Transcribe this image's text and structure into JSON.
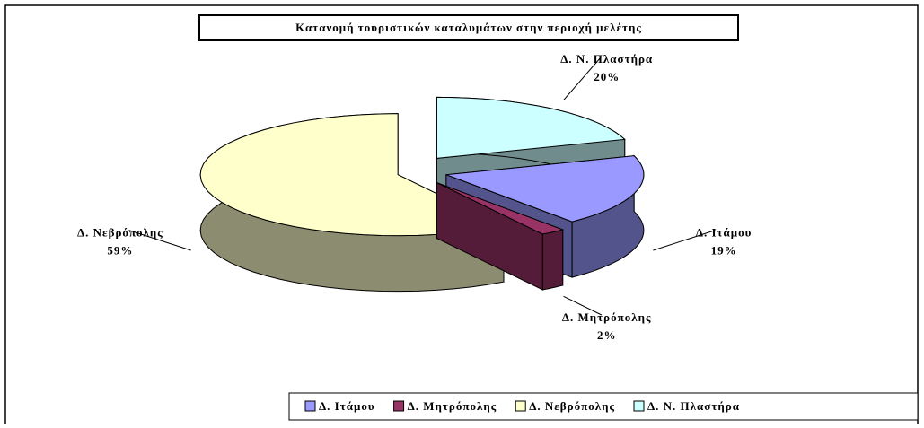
{
  "chart_data": {
    "type": "pie3d",
    "title": "Κατανομή τουριστικών καταλυμάτων στην περιοχή μελέτης",
    "categories": [
      "Δ. Ιτάμου",
      "Δ. Μητρόπολης",
      "Δ. Νεβρόπολης",
      "Δ. Ν. Πλαστήρα"
    ],
    "values": [
      19,
      2,
      59,
      20
    ],
    "value_labels": [
      "19%",
      "2%",
      "59%",
      "20%"
    ],
    "colors": [
      "#9999ff",
      "#993366",
      "#ffffcc",
      "#ccffff"
    ],
    "legend": "bottom-right"
  }
}
